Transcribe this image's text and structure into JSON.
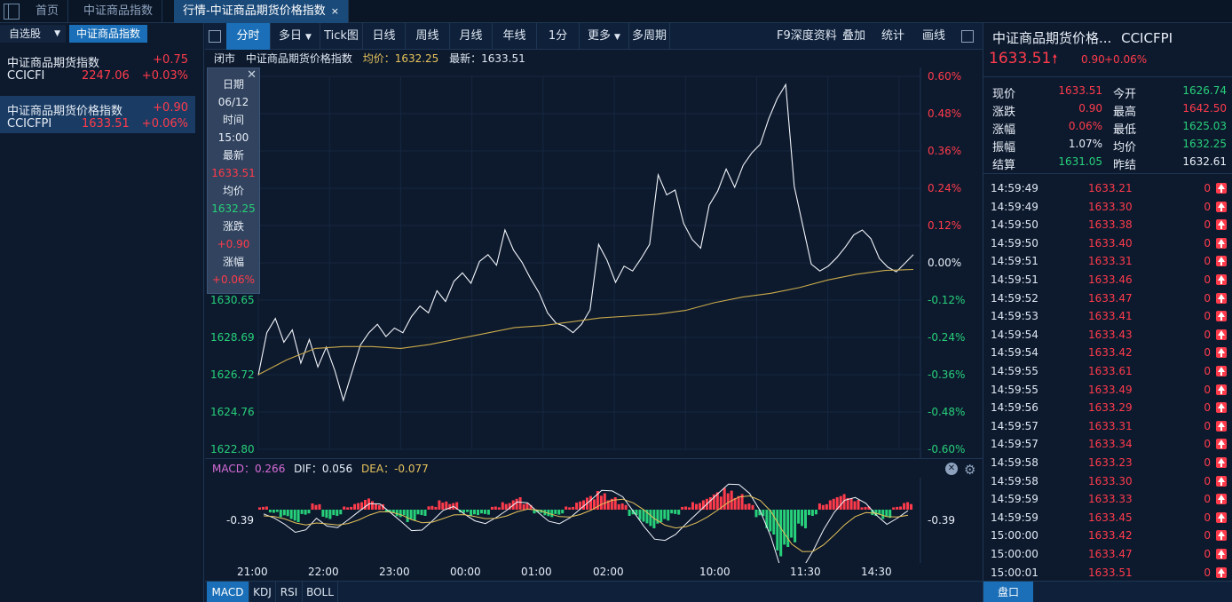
{
  "topbar": {
    "tabs": [
      {
        "label": "首页"
      },
      {
        "label": "中证商品指数"
      },
      {
        "label": "行情-中证商品期货价格指数"
      }
    ],
    "close_glyph": "×"
  },
  "left": {
    "select_label": "自选股",
    "group_label": "中证商品指数",
    "items": [
      {
        "name": "中证商品期货指数",
        "change": "+0.75",
        "code": "CCICFI",
        "price": "2247.06",
        "pct": "+0.03%"
      },
      {
        "name": "中证商品期货价格指数",
        "change": "+0.90",
        "code": "CCICFPI",
        "price": "1633.51",
        "pct": "+0.06%"
      }
    ]
  },
  "toolbar": {
    "buttons": [
      "分时",
      "多日",
      "Tick图",
      "日线",
      "周线",
      "月线",
      "年线",
      "1分",
      "更多",
      "多周期"
    ],
    "right": [
      "F9深度资料",
      "叠加",
      "统计",
      "画线"
    ]
  },
  "infoline": {
    "status": "闭市",
    "name": "中证商品期货价格指数",
    "avg": "均价：1632.25",
    "last": "最新：1633.51"
  },
  "tooltip": {
    "rows": [
      {
        "text": "日期",
        "color": "#e8eef7"
      },
      {
        "text": "06/12",
        "color": "#e8eef7"
      },
      {
        "text": "时间",
        "color": "#e8eef7"
      },
      {
        "text": "15:00",
        "color": "#e8eef7"
      },
      {
        "text": "最新",
        "color": "#e8eef7"
      },
      {
        "text": "1633.51",
        "color": "#ff3b4b"
      },
      {
        "text": "均价",
        "color": "#e8eef7"
      },
      {
        "text": "1632.25",
        "color": "#27d07a"
      },
      {
        "text": "涨跌",
        "color": "#e8eef7"
      },
      {
        "text": "+0.90",
        "color": "#ff3b4b"
      },
      {
        "text": "涨幅",
        "color": "#e8eef7"
      },
      {
        "text": "+0.06%",
        "color": "#ff3b4b"
      }
    ]
  },
  "chart": {
    "y_left": [
      "1630.65",
      "1628.69",
      "1626.72",
      "1624.76",
      "1622.80"
    ],
    "y_right": [
      "0.60%",
      "0.48%",
      "0.36%",
      "0.24%",
      "0.12%",
      "0.00%",
      "-0.12%",
      "-0.24%",
      "-0.36%",
      "-0.48%",
      "-0.60%"
    ],
    "x_ticks": [
      "21:00",
      "22:00",
      "23:00",
      "00:00",
      "01:00",
      "02:00",
      "10:00",
      "11:30",
      "14:30"
    ],
    "prev_close": 1632.61,
    "ymin": 1622.8,
    "ymax": 1642.4,
    "price": [
      1626.72,
      1628.9,
      1629.7,
      1628.4,
      1629.1,
      1627.3,
      1628.6,
      1627.1,
      1628.2,
      1626.9,
      1625.4,
      1626.8,
      1628.3,
      1628.9,
      1629.4,
      1628.7,
      1629.2,
      1628.9,
      1629.8,
      1630.3,
      1630.0,
      1631.1,
      1630.6,
      1631.6,
      1632.1,
      1631.5,
      1632.7,
      1633.0,
      1632.5,
      1634.3,
      1633.3,
      1632.6,
      1631.8,
      1631.0,
      1630.0,
      1629.4,
      1629.3,
      1628.9,
      1629.4,
      1630.1,
      1633.6,
      1632.7,
      1631.6,
      1632.4,
      1632.2,
      1632.8,
      1633.6,
      1637.2,
      1636.2,
      1636.4,
      1634.7,
      1633.8,
      1633.4,
      1635.6,
      1636.4,
      1637.5,
      1636.6,
      1637.7,
      1638.4,
      1638.8,
      1640.2,
      1641.2,
      1642.0,
      1636.6,
      1634.6,
      1632.5,
      1632.2,
      1632.4,
      1632.9,
      1633.4,
      1634.1,
      1634.3,
      1633.9,
      1632.8,
      1632.4,
      1632.1,
      1632.6,
      1633.0
    ],
    "avg": [
      1626.72,
      1627.5,
      1628.1,
      1628.2,
      1628.2,
      1628.1,
      1628.3,
      1628.6,
      1628.9,
      1629.2,
      1629.3,
      1629.5,
      1629.7,
      1629.8,
      1629.9,
      1630.1,
      1630.5,
      1630.8,
      1631.0,
      1631.3,
      1631.7,
      1632.0,
      1632.2,
      1632.25
    ],
    "macd_label": "MACD：0.266",
    "dif_label": "DIF：0.056",
    "dea_label": "DEA：-0.077",
    "macd_axis_left": "-0.39",
    "macd_axis_right": "-0.39",
    "macd_hist": [
      0.05,
      -0.05,
      -0.12,
      -0.2,
      -0.08,
      0.1,
      -0.15,
      -0.1,
      0.05,
      0.12,
      0.18,
      0.1,
      -0.05,
      -0.12,
      -0.2,
      -0.1,
      0.06,
      0.15,
      0.12,
      -0.05,
      -0.1,
      -0.08,
      0.05,
      0.12,
      0.2,
      0.1,
      -0.06,
      -0.12,
      -0.08,
      0.05,
      0.15,
      0.22,
      0.3,
      0.2,
      0.1,
      -0.1,
      -0.22,
      -0.3,
      -0.2,
      -0.08,
      0.05,
      0.12,
      0.2,
      0.28,
      0.35,
      0.25,
      0.1,
      -0.12,
      -0.4,
      -0.75,
      -0.6,
      -0.3,
      -0.1,
      0.1,
      0.2,
      0.25,
      0.18,
      0.05,
      -0.1,
      -0.15,
      0.05,
      0.12
    ]
  },
  "bottombar": {
    "buttons": [
      "MACD",
      "KDJ",
      "RSI",
      "BOLL"
    ]
  },
  "right": {
    "title": "中证商品期货价格...",
    "code": "CCICFPI",
    "price": "1633.51",
    "arrow": "🠕",
    "change": "0.90",
    "pct": "+0.06%",
    "quote": [
      {
        "l1": "现价",
        "v1": "1633.51",
        "c1": "#ff3b4b",
        "l2": "今开",
        "v2": "1626.74",
        "c2": "#27d07a"
      },
      {
        "l1": "涨跌",
        "v1": "0.90",
        "c1": "#ff3b4b",
        "l2": "最高",
        "v2": "1642.50",
        "c2": "#ff3b4b"
      },
      {
        "l1": "涨幅",
        "v1": "0.06%",
        "c1": "#ff3b4b",
        "l2": "最低",
        "v2": "1625.03",
        "c2": "#27d07a"
      },
      {
        "l1": "振幅",
        "v1": "1.07%",
        "c1": "#e8eef7",
        "l2": "均价",
        "v2": "1632.25",
        "c2": "#27d07a"
      },
      {
        "l1": "结算",
        "v1": "1631.05",
        "c1": "#27d07a",
        "l2": "昨结",
        "v2": "1632.61",
        "c2": "#e8eef7"
      }
    ],
    "ticks": [
      {
        "time": "14:59:49",
        "price": "1633.21",
        "vol": "0"
      },
      {
        "time": "14:59:49",
        "price": "1633.30",
        "vol": "0"
      },
      {
        "time": "14:59:50",
        "price": "1633.38",
        "vol": "0"
      },
      {
        "time": "14:59:50",
        "price": "1633.40",
        "vol": "0"
      },
      {
        "time": "14:59:51",
        "price": "1633.31",
        "vol": "0"
      },
      {
        "time": "14:59:51",
        "price": "1633.46",
        "vol": "0"
      },
      {
        "time": "14:59:52",
        "price": "1633.47",
        "vol": "0"
      },
      {
        "time": "14:59:53",
        "price": "1633.41",
        "vol": "0"
      },
      {
        "time": "14:59:54",
        "price": "1633.43",
        "vol": "0"
      },
      {
        "time": "14:59:54",
        "price": "1633.42",
        "vol": "0"
      },
      {
        "time": "14:59:55",
        "price": "1633.61",
        "vol": "0"
      },
      {
        "time": "14:59:55",
        "price": "1633.49",
        "vol": "0"
      },
      {
        "time": "14:59:56",
        "price": "1633.29",
        "vol": "0"
      },
      {
        "time": "14:59:57",
        "price": "1633.31",
        "vol": "0"
      },
      {
        "time": "14:59:57",
        "price": "1633.34",
        "vol": "0"
      },
      {
        "time": "14:59:58",
        "price": "1633.23",
        "vol": "0"
      },
      {
        "time": "14:59:58",
        "price": "1633.30",
        "vol": "0"
      },
      {
        "time": "14:59:59",
        "price": "1633.33",
        "vol": "0"
      },
      {
        "time": "14:59:59",
        "price": "1633.45",
        "vol": "0"
      },
      {
        "time": "15:00:00",
        "price": "1633.42",
        "vol": "0"
      },
      {
        "time": "15:00:00",
        "price": "1633.47",
        "vol": "0"
      },
      {
        "time": "15:00:01",
        "price": "1633.51",
        "vol": "0"
      }
    ],
    "bottom_label": "盘口"
  },
  "colors": {
    "up": "#ff3b4b",
    "down": "#27d07a",
    "avg_line": "#c9a94a",
    "accent": "#1a6fb8"
  }
}
